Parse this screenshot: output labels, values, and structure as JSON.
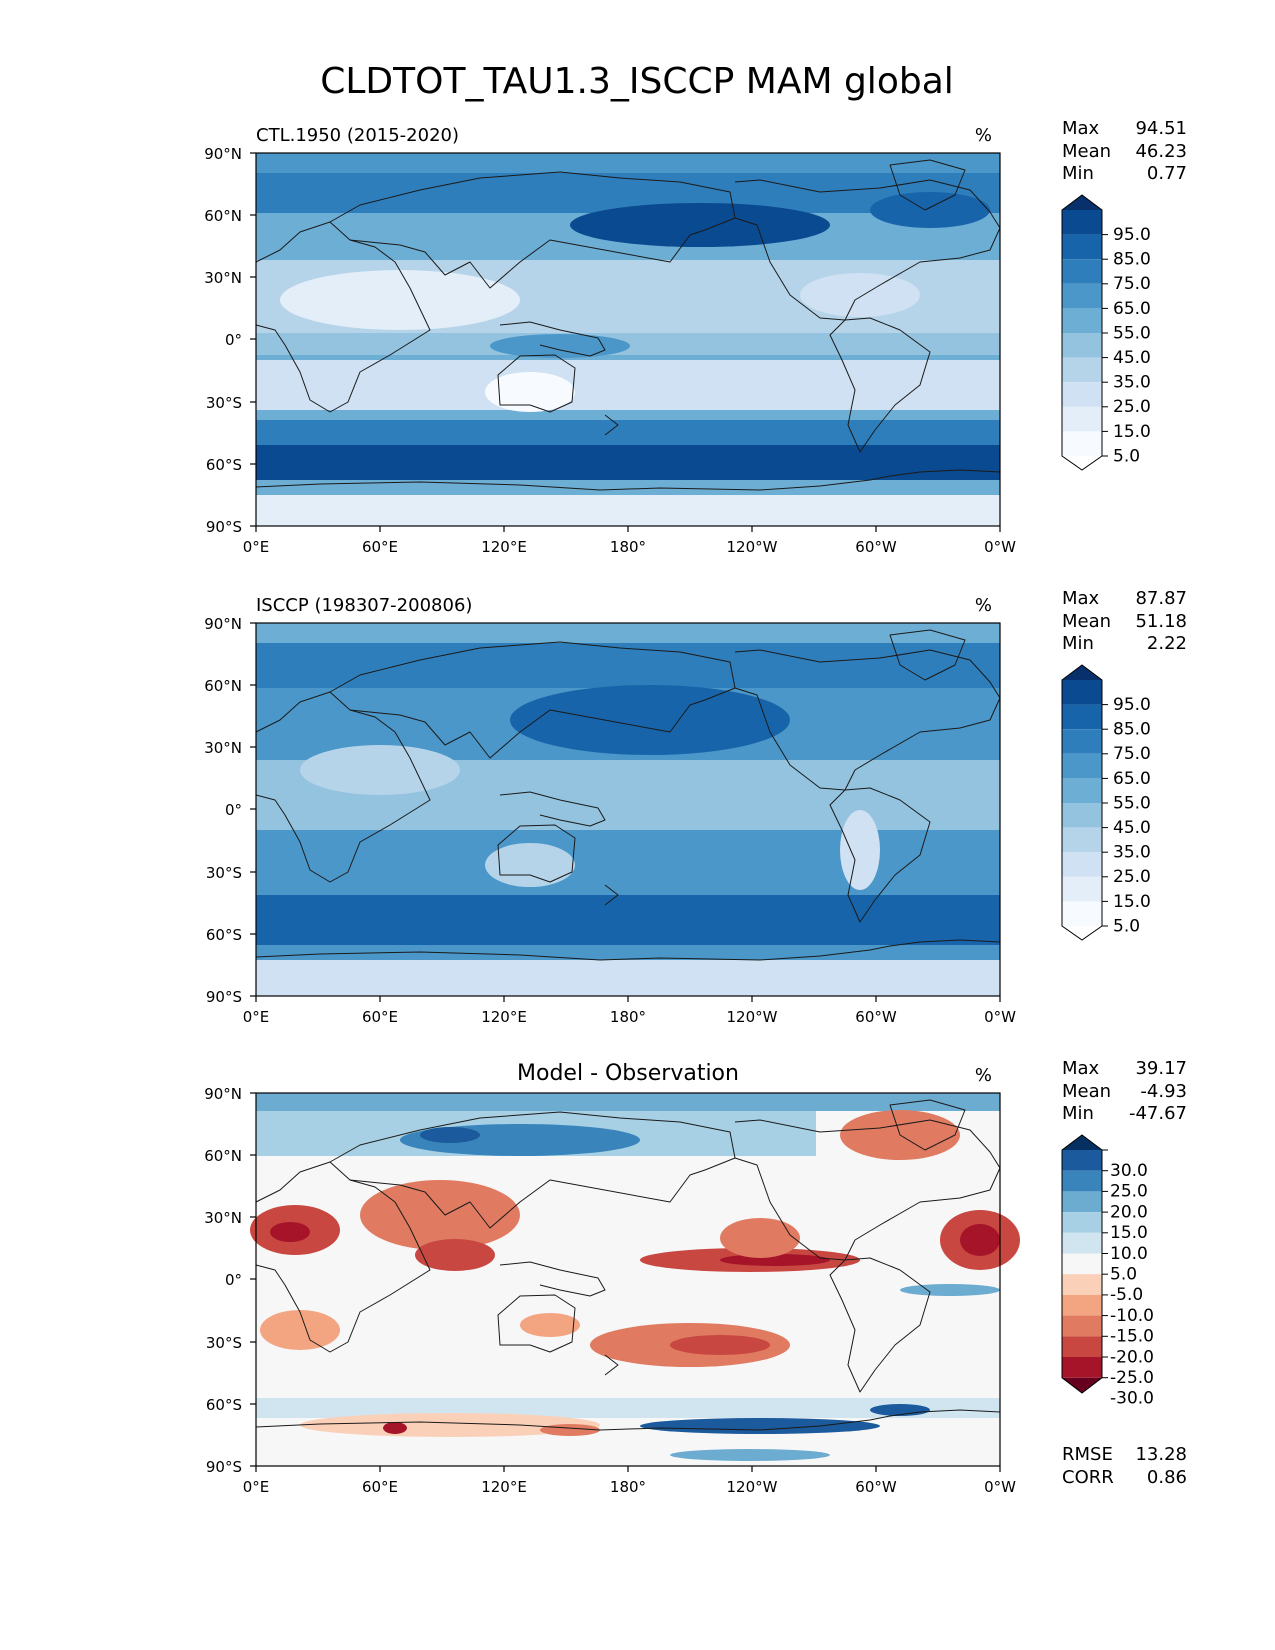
{
  "figure": {
    "title": "CLDTOT_TAU1.3_ISCCP MAM global"
  },
  "axes": {
    "lat_ticks": [
      "90°N",
      "60°N",
      "30°N",
      "0°",
      "30°S",
      "60°S",
      "90°S"
    ],
    "lon_ticks": [
      "0°E",
      "60°E",
      "120°E",
      "180°",
      "120°W",
      "60°W",
      "0°W"
    ]
  },
  "panels": [
    {
      "id": "model",
      "title_left": "CTL.1950 (2015-2020)",
      "title_center": "",
      "units": "%",
      "stats": {
        "max_label": "Max",
        "max": "94.51",
        "mean_label": "Mean",
        "mean": "46.23",
        "min_label": "Min",
        "min": "0.77"
      },
      "colorbar": {
        "labels": [
          "95.0",
          "85.0",
          "75.0",
          "65.0",
          "55.0",
          "45.0",
          "35.0",
          "25.0",
          "15.0",
          "5.0"
        ]
      }
    },
    {
      "id": "obs",
      "title_left": "ISCCP (198307-200806)",
      "title_center": "",
      "units": "%",
      "stats": {
        "max_label": "Max",
        "max": "87.87",
        "mean_label": "Mean",
        "mean": "51.18",
        "min_label": "Min",
        "min": "2.22"
      },
      "colorbar": {
        "labels": [
          "95.0",
          "85.0",
          "75.0",
          "65.0",
          "55.0",
          "45.0",
          "35.0",
          "25.0",
          "15.0",
          "5.0"
        ]
      }
    },
    {
      "id": "diff",
      "title_left": "",
      "title_center": "Model - Observation",
      "units": "%",
      "stats": {
        "max_label": "Max",
        "max": "39.17",
        "mean_label": "Mean",
        "mean": "-4.93",
        "min_label": "Min",
        "min": "-47.67"
      },
      "colorbar": {
        "labels": [
          "30.0",
          "25.0",
          "20.0",
          "15.0",
          "10.0",
          "5.0",
          "-5.0",
          "-10.0",
          "-15.0",
          "-20.0",
          "-25.0",
          "-30.0"
        ]
      },
      "metrics": {
        "rmse_label": "RMSE",
        "rmse": "13.28",
        "corr_label": "CORR",
        "corr": "0.86"
      }
    }
  ],
  "colors": {
    "blues": [
      "#f7fbff",
      "#e3eef9",
      "#cfe1f2",
      "#b5d4e9",
      "#93c3df",
      "#6daed5",
      "#4b97c9",
      "#2f7ebc",
      "#1864aa",
      "#0a4a90",
      "#08306b"
    ],
    "diverging": [
      "#67001f",
      "#a51429",
      "#c94741",
      "#e07b62",
      "#f3a481",
      "#fbd0b9",
      "#f7f7f7",
      "#d1e5f0",
      "#a7d0e4",
      "#6dacd1",
      "#3884bb",
      "#1b5a9c",
      "#053061"
    ],
    "coastline": "#1a1a1a"
  }
}
